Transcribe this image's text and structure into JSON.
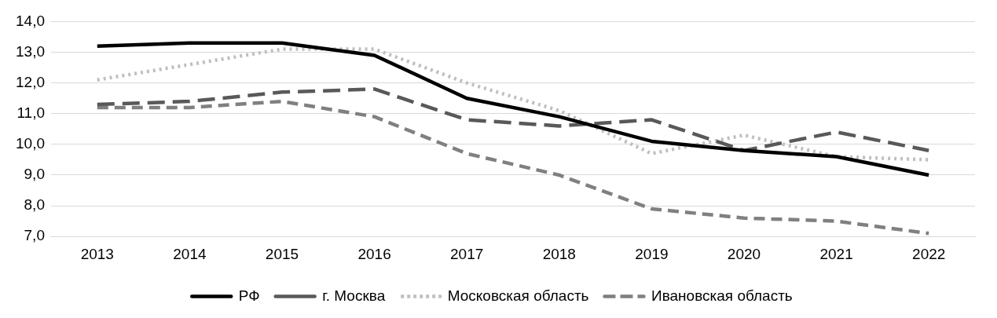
{
  "chart_data": {
    "type": "line",
    "categories": [
      "2013",
      "2014",
      "2015",
      "2016",
      "2017",
      "2018",
      "2019",
      "2020",
      "2021",
      "2022"
    ],
    "series": [
      {
        "name": "РФ",
        "color": "#000000",
        "line_style": "solid",
        "values": [
          13.2,
          13.3,
          13.3,
          12.9,
          11.5,
          10.9,
          10.1,
          9.8,
          9.6,
          9.0
        ]
      },
      {
        "name": "г. Москва",
        "color": "#595959",
        "line_style": "dashed",
        "values": [
          11.3,
          11.4,
          11.7,
          11.8,
          10.8,
          10.6,
          10.8,
          9.8,
          10.4,
          9.8
        ]
      },
      {
        "name": "Московская область",
        "color": "#bfbfbf",
        "line_style": "dotted",
        "values": [
          12.1,
          12.6,
          13.1,
          13.1,
          12.0,
          11.1,
          9.7,
          10.3,
          9.6,
          9.5
        ]
      },
      {
        "name": "Ивановская область",
        "color": "#808080",
        "line_style": "dashed",
        "values": [
          11.2,
          11.2,
          11.4,
          10.9,
          9.7,
          9.0,
          7.9,
          7.6,
          7.5,
          7.1
        ]
      }
    ],
    "ylim": [
      7,
      14
    ],
    "yticks": [
      {
        "value": 7,
        "label": "7,0"
      },
      {
        "value": 8,
        "label": "8,0"
      },
      {
        "value": 9,
        "label": "9,0"
      },
      {
        "value": 10,
        "label": "10,0"
      },
      {
        "value": 11,
        "label": "11,0"
      },
      {
        "value": 12,
        "label": "12,0"
      },
      {
        "value": 13,
        "label": "13,0"
      },
      {
        "value": 14,
        "label": "14,0"
      }
    ],
    "grid": "y",
    "legend": "bottom",
    "marker": "none"
  }
}
